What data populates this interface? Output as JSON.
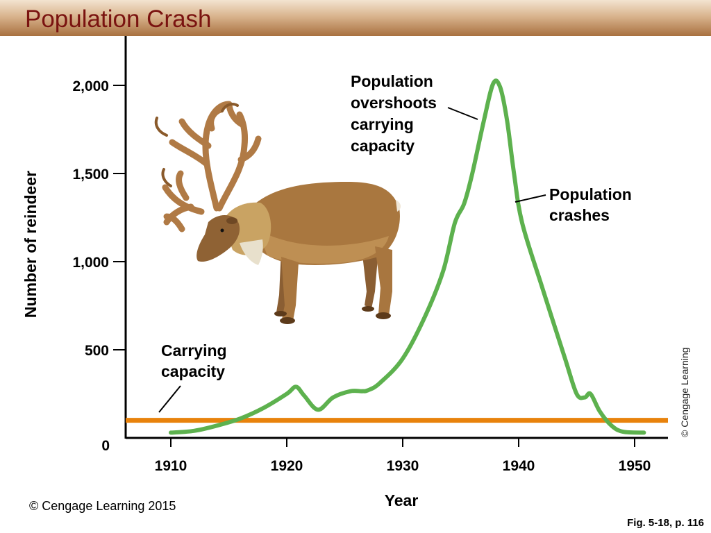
{
  "header": {
    "title": "Population Crash"
  },
  "footer": {
    "copyright": "© Cengage Learning 2015",
    "figure_ref": "Fig. 5-18, p. 116",
    "side_credit": "© Cengage Learning"
  },
  "colors": {
    "population_line": "#5db14e",
    "carrying_capacity": "#e8820c",
    "title_text": "#7a1310"
  },
  "illustration": {
    "icon": "reindeer-icon"
  },
  "chart_data": {
    "type": "line",
    "title": "Population Crash",
    "xlabel": "Year",
    "ylabel": "Number of reindeer",
    "xlim": [
      1906,
      1953
    ],
    "ylim": [
      0,
      2100
    ],
    "x_ticks": [
      1910,
      1920,
      1930,
      1940,
      1950
    ],
    "x_tick_labels": [
      "1910",
      "1920",
      "1930",
      "1940",
      "1950"
    ],
    "y_ticks": [
      0,
      500,
      1000,
      1500,
      2000
    ],
    "y_tick_labels": [
      "0",
      "500",
      "1,000",
      "1,500",
      "2,000"
    ],
    "grid": false,
    "series": [
      {
        "color": "#5db14e",
        "x": [
          1910,
          1912,
          1914,
          1916,
          1918,
          1920,
          1920.8,
          1921.5,
          1922.7,
          1924,
          1925.5,
          1926.5,
          1927,
          1928,
          1930,
          1932,
          1933.5,
          1934.5,
          1935.3,
          1936,
          1937,
          1937.8,
          1938.4,
          1939,
          1939.6,
          1940.3,
          1942,
          1944,
          1945,
          1945.7,
          1946.2,
          1947,
          1948,
          1949,
          1950.8
        ],
        "values": [
          30,
          40,
          70,
          110,
          170,
          250,
          290,
          240,
          160,
          230,
          265,
          265,
          270,
          310,
          450,
          700,
          950,
          1220,
          1330,
          1500,
          1800,
          2010,
          1990,
          1800,
          1500,
          1220,
          860,
          450,
          250,
          230,
          250,
          150,
          70,
          35,
          30
        ]
      }
    ],
    "reference_lines": [
      {
        "name": "Carrying capacity",
        "value": 100,
        "color": "#e8820c"
      }
    ],
    "annotations": [
      {
        "lines": [
          "Population",
          "overshoots",
          "carrying",
          "capacity"
        ]
      },
      {
        "lines": [
          "Population",
          "crashes"
        ]
      },
      {
        "lines": [
          "Carrying",
          "capacity"
        ]
      }
    ]
  }
}
